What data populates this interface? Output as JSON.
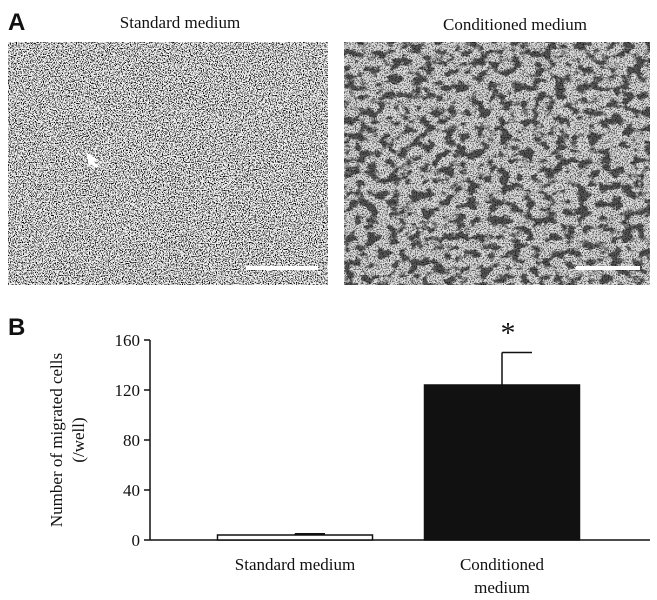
{
  "panel_labels": [
    "A",
    "B"
  ],
  "image_titles": [
    "Standard medium",
    "Conditioned medium"
  ],
  "chart_data": {
    "type": "bar",
    "categories": [
      "Standard medium",
      "Conditioned medium"
    ],
    "values": [
      4,
      124
    ],
    "errors": [
      1,
      26
    ],
    "colors": [
      "#ffffff",
      "#111111"
    ],
    "ylabel": [
      "Number of migrated cells",
      "(/well)"
    ],
    "annotation": "*",
    "ylim": [
      0,
      160
    ],
    "yticks": [
      0,
      40,
      80,
      120,
      160
    ]
  }
}
